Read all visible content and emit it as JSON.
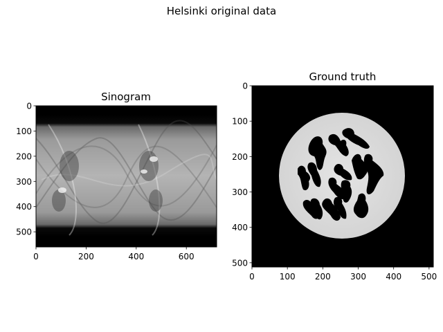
{
  "suptitle": "Helsinki original data",
  "chart_data": [
    {
      "type": "heatmap",
      "title": "Sinogram",
      "colormap": "gray",
      "xlim": [
        0,
        721
      ],
      "ylim": [
        560,
        0
      ],
      "xticks": [
        "0",
        "200",
        "400",
        "600"
      ],
      "yticks": [
        "0",
        "100",
        "200",
        "300",
        "400",
        "500"
      ],
      "xtick_values": [
        0,
        200,
        400,
        600
      ],
      "ytick_values": [
        0,
        100,
        200,
        300,
        400,
        500
      ],
      "grid": false
    },
    {
      "type": "heatmap",
      "title": "Ground truth",
      "colormap": "gray",
      "xlim": [
        0,
        512
      ],
      "ylim": [
        512,
        0
      ],
      "xticks": [
        "0",
        "100",
        "200",
        "300",
        "400",
        "500"
      ],
      "yticks": [
        "0",
        "100",
        "200",
        "300",
        "400",
        "500"
      ],
      "xtick_values": [
        0,
        100,
        200,
        300,
        400,
        500
      ],
      "ytick_values": [
        0,
        100,
        200,
        300,
        400,
        500
      ],
      "grid": false
    }
  ]
}
